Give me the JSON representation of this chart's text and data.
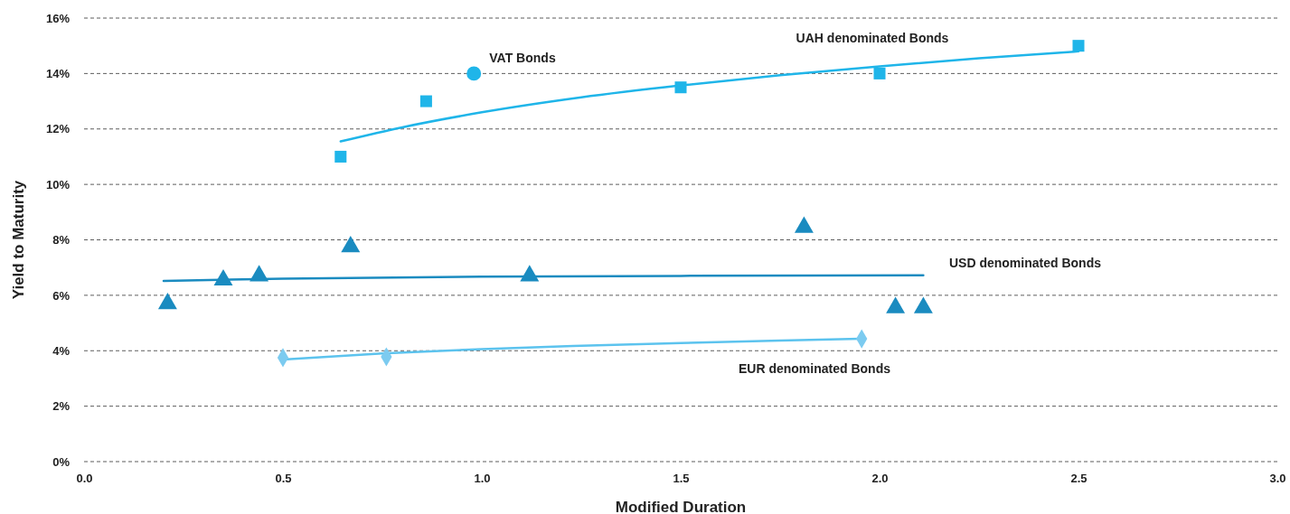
{
  "chart_data": {
    "type": "scatter",
    "xlabel": "Modified Duration",
    "ylabel": "Yield to Maturity",
    "xlim": [
      0,
      3
    ],
    "xticks": [
      {
        "value": 0,
        "label": "0.0"
      },
      {
        "value": 0.5,
        "label": "0.5"
      },
      {
        "value": 1,
        "label": "1.0"
      },
      {
        "value": 1.5,
        "label": "1.5"
      },
      {
        "value": 2,
        "label": "2.0"
      },
      {
        "value": 2.5,
        "label": "2.5"
      },
      {
        "value": 3,
        "label": "3.0"
      }
    ],
    "ylim": [
      0,
      16
    ],
    "yticks": [
      {
        "value": 0,
        "label": "0%"
      },
      {
        "value": 2,
        "label": "2%"
      },
      {
        "value": 4,
        "label": "4%"
      },
      {
        "value": 6,
        "label": "6%"
      },
      {
        "value": 8,
        "label": "8%"
      },
      {
        "value": 10,
        "label": "10%"
      },
      {
        "value": 12,
        "label": "12%"
      },
      {
        "value": 14,
        "label": "14%"
      },
      {
        "value": 16,
        "label": "16%"
      }
    ],
    "grid": "y",
    "series": [
      {
        "type": "line",
        "color": "#1fb5e9",
        "marker": "none",
        "x": [
          0.645,
          0.8,
          1.0,
          1.25,
          1.5,
          1.75,
          2.0,
          2.25,
          2.5
        ],
        "values": [
          11.55,
          12.06,
          12.6,
          13.14,
          13.57,
          13.94,
          14.26,
          14.55,
          14.8
        ]
      },
      {
        "type": "line",
        "color": "#1a8bc0",
        "marker": "none",
        "x": [
          0.2,
          0.5,
          1.0,
          1.5,
          2.11
        ],
        "values": [
          6.52,
          6.6,
          6.67,
          6.7,
          6.72
        ]
      },
      {
        "type": "line",
        "color": "#5cc3ee",
        "marker": "none",
        "x": [
          0.5,
          0.75,
          1.0,
          1.25,
          1.5,
          1.75,
          1.95
        ],
        "values": [
          3.68,
          3.9,
          4.06,
          4.18,
          4.28,
          4.37,
          4.43
        ]
      },
      {
        "color": "#1fb5e9",
        "marker": "square",
        "x": [
          0.645,
          0.86,
          1.5,
          2.0,
          2.5
        ],
        "values": [
          11,
          13,
          13.5,
          14,
          15
        ]
      },
      {
        "color": "#1fb5e9",
        "marker": "circle",
        "x": [
          0.98
        ],
        "values": [
          14
        ]
      },
      {
        "color": "#1a8bc0",
        "marker": "triangle",
        "x": [
          0.21,
          0.35,
          0.44,
          0.67,
          1.12,
          1.81,
          2.04,
          2.11
        ],
        "values": [
          5.7,
          6.55,
          6.7,
          7.75,
          6.7,
          8.45,
          5.55,
          5.55
        ]
      },
      {
        "color": "#7ccbf0",
        "marker": "diamond",
        "x": [
          0.5,
          0.76,
          1.955
        ],
        "values": [
          3.75,
          3.78,
          4.43
        ]
      }
    ],
    "annotations": [
      "UAH denominated Bonds",
      "VAT Bonds",
      "USD denominated Bonds",
      "EUR denominated Bonds"
    ]
  }
}
